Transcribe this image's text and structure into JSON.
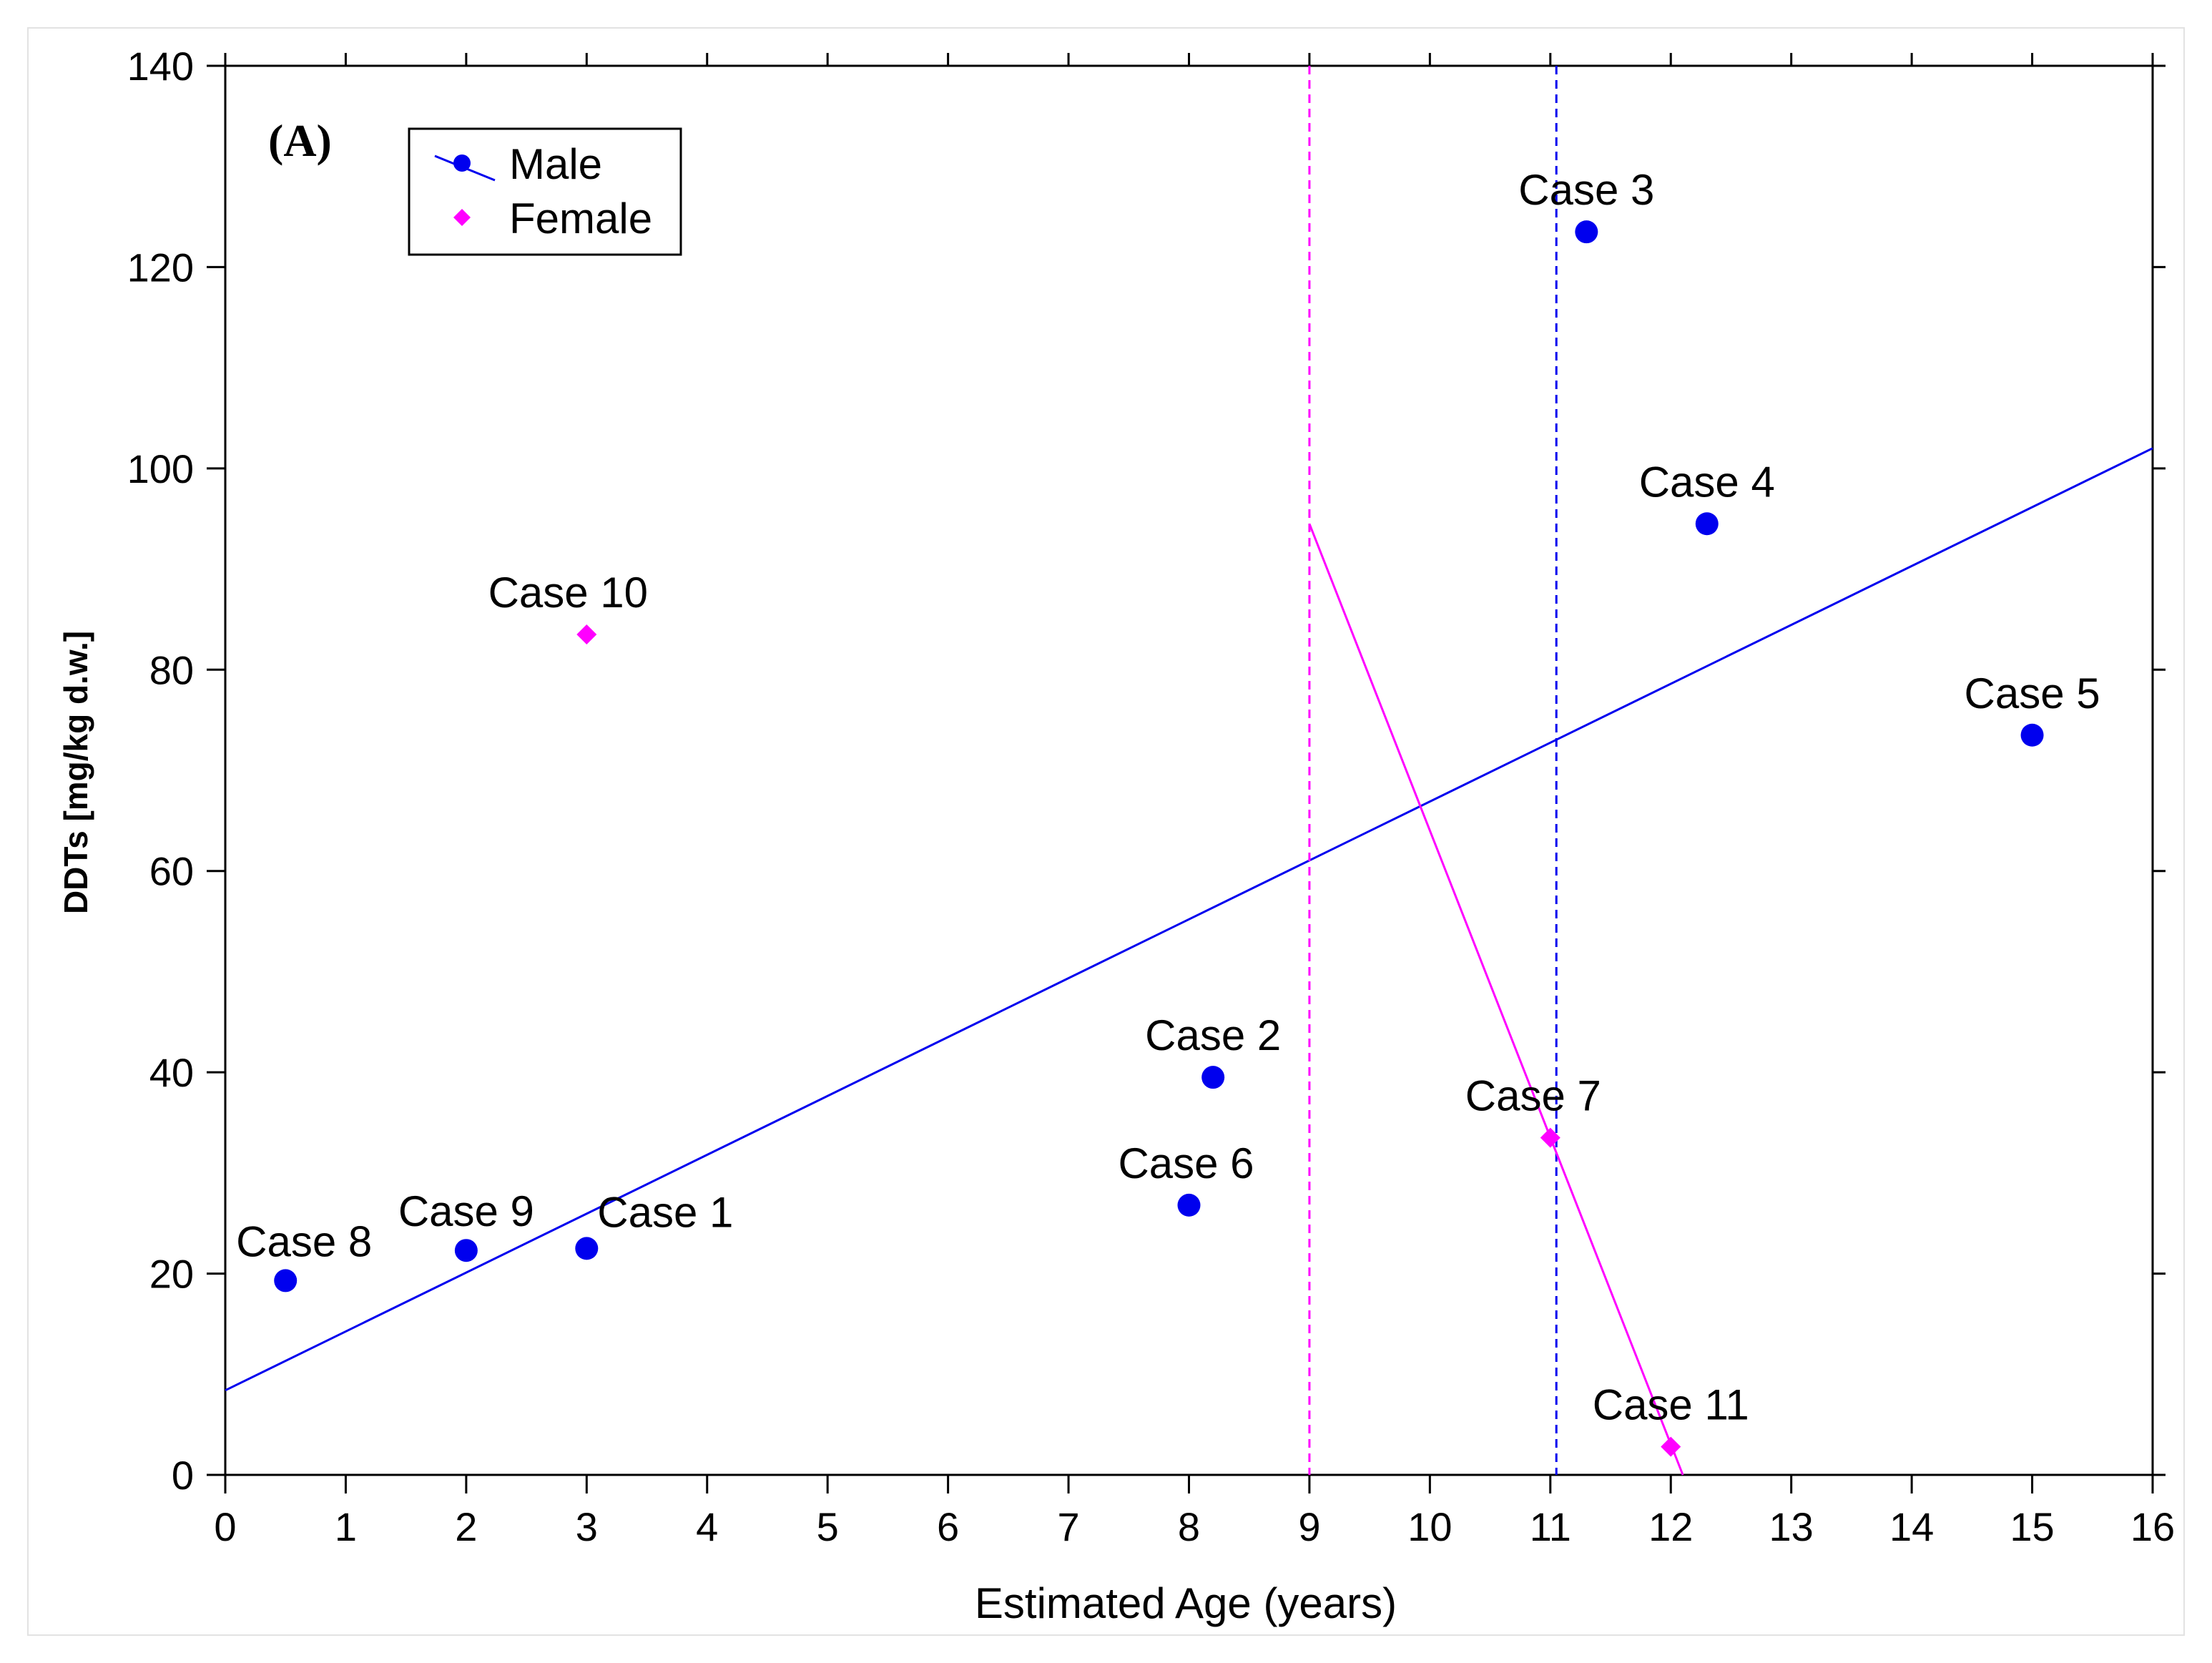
{
  "chart_data": {
    "type": "scatter",
    "panel_label": "(A)",
    "xlabel": "Estimated Age (years)",
    "ylabel": "DDTs [mg/kg d.w.]",
    "xlim": [
      0,
      16
    ],
    "ylim": [
      0,
      140
    ],
    "xticks": [
      0,
      1,
      2,
      3,
      4,
      5,
      6,
      7,
      8,
      9,
      10,
      11,
      12,
      13,
      14,
      15,
      16
    ],
    "yticks": [
      0,
      20,
      40,
      60,
      80,
      100,
      120,
      140
    ],
    "grid": false,
    "legend_position": "top-left",
    "colors": {
      "male": "#0000ee",
      "female": "#ff00ff"
    },
    "series": [
      {
        "name": "Male",
        "marker": "circle",
        "color": "#0000ee",
        "points": [
          {
            "label": "Case 1",
            "x": 3.0,
            "y": 22.5
          },
          {
            "label": "Case 2",
            "x": 8.2,
            "y": 39.5
          },
          {
            "label": "Case 3",
            "x": 11.3,
            "y": 123.5
          },
          {
            "label": "Case 4",
            "x": 12.3,
            "y": 94.5
          },
          {
            "label": "Case 5",
            "x": 15.0,
            "y": 73.5
          },
          {
            "label": "Case 6",
            "x": 8.0,
            "y": 26.8
          },
          {
            "label": "Case 8",
            "x": 0.5,
            "y": 19.3
          },
          {
            "label": "Case 9",
            "x": 2.0,
            "y": 22.3
          }
        ],
        "fit_line": {
          "x": [
            0,
            16
          ],
          "y": [
            8.4,
            102.0
          ]
        },
        "vertical_line_x": 11.05
      },
      {
        "name": "Female",
        "marker": "diamond",
        "color": "#ff00ff",
        "points": [
          {
            "label": "Case 7",
            "x": 11.0,
            "y": 33.5
          },
          {
            "label": "Case 10",
            "x": 3.0,
            "y": 83.5
          },
          {
            "label": "Case 11",
            "x": 12.0,
            "y": 2.8
          }
        ],
        "fit_line": {
          "x": [
            9.0,
            12.1
          ],
          "y": [
            94.5,
            0
          ]
        },
        "vertical_line_x": 9.0
      }
    ]
  }
}
